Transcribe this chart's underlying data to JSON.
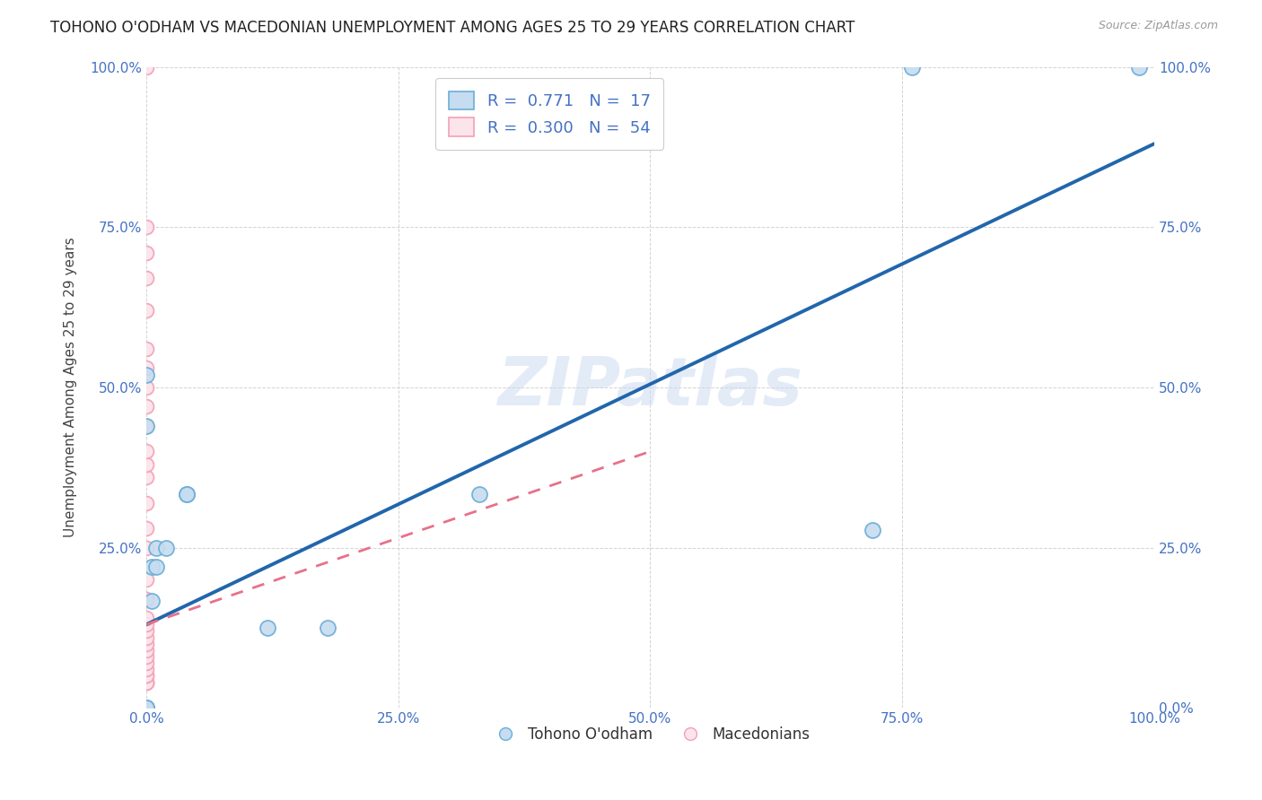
{
  "title": "TOHONO O'ODHAM VS MACEDONIAN UNEMPLOYMENT AMONG AGES 25 TO 29 YEARS CORRELATION CHART",
  "source": "Source: ZipAtlas.com",
  "ylabel": "Unemployment Among Ages 25 to 29 years",
  "xlim": [
    0,
    1.0
  ],
  "ylim": [
    0,
    1.0
  ],
  "xticks": [
    0.0,
    0.25,
    0.5,
    0.75,
    1.0
  ],
  "yticks": [
    0.0,
    0.25,
    0.5,
    0.75,
    1.0
  ],
  "xticklabels": [
    "0.0%",
    "25.0%",
    "50.0%",
    "75.0%",
    "100.0%"
  ],
  "yticklabels": [
    "",
    "25.0%",
    "50.0%",
    "75.0%",
    "100.0%"
  ],
  "right_yticklabels": [
    "0.0%",
    "25.0%",
    "50.0%",
    "75.0%",
    "100.0%"
  ],
  "blue_edge": "#6baed6",
  "blue_fill": "#c6dcf0",
  "pink_edge": "#f4a0b5",
  "pink_fill": "#fce4ec",
  "trend_blue": "#2166ac",
  "trend_pink": "#e8708a",
  "watermark": "ZIPatlas",
  "legend_R_blue": "0.771",
  "legend_N_blue": "17",
  "legend_R_pink": "0.300",
  "legend_N_pink": "54",
  "blue_trend_x": [
    0.0,
    1.0
  ],
  "blue_trend_y": [
    0.13,
    0.88
  ],
  "pink_trend_x": [
    0.0,
    0.5
  ],
  "pink_trend_y": [
    0.13,
    0.4
  ],
  "tohono_points": [
    [
      0.0,
      0.52
    ],
    [
      0.0,
      0.44
    ],
    [
      0.0,
      0.0
    ],
    [
      0.0,
      0.0
    ],
    [
      0.005,
      0.22
    ],
    [
      0.005,
      0.167
    ],
    [
      0.01,
      0.25
    ],
    [
      0.01,
      0.22
    ],
    [
      0.02,
      0.25
    ],
    [
      0.04,
      0.333
    ],
    [
      0.04,
      0.333
    ],
    [
      0.12,
      0.125
    ],
    [
      0.18,
      0.125
    ],
    [
      0.33,
      0.333
    ],
    [
      0.72,
      0.278
    ],
    [
      0.76,
      1.0
    ],
    [
      0.985,
      1.0
    ]
  ],
  "macedonian_points": [
    [
      0.0,
      0.0
    ],
    [
      0.0,
      0.0
    ],
    [
      0.0,
      0.0
    ],
    [
      0.0,
      0.0
    ],
    [
      0.0,
      0.0
    ],
    [
      0.0,
      0.0
    ],
    [
      0.0,
      0.0
    ],
    [
      0.0,
      0.0
    ],
    [
      0.0,
      0.0
    ],
    [
      0.0,
      0.0
    ],
    [
      0.0,
      0.0
    ],
    [
      0.0,
      0.0
    ],
    [
      0.0,
      0.0
    ],
    [
      0.0,
      0.0
    ],
    [
      0.0,
      0.0
    ],
    [
      0.0,
      0.0
    ],
    [
      0.0,
      0.0
    ],
    [
      0.0,
      0.0
    ],
    [
      0.0,
      0.0
    ],
    [
      0.0,
      0.0
    ],
    [
      0.0,
      0.0
    ],
    [
      0.0,
      0.0
    ],
    [
      0.0,
      0.04
    ],
    [
      0.0,
      0.04
    ],
    [
      0.0,
      0.04
    ],
    [
      0.0,
      0.05
    ],
    [
      0.0,
      0.05
    ],
    [
      0.0,
      0.06
    ],
    [
      0.0,
      0.07
    ],
    [
      0.0,
      0.08
    ],
    [
      0.0,
      0.09
    ],
    [
      0.0,
      0.1
    ],
    [
      0.0,
      0.11
    ],
    [
      0.0,
      0.12
    ],
    [
      0.0,
      0.13
    ],
    [
      0.0,
      0.14
    ],
    [
      0.0,
      0.17
    ],
    [
      0.0,
      0.2
    ],
    [
      0.0,
      0.25
    ],
    [
      0.0,
      0.28
    ],
    [
      0.0,
      0.32
    ],
    [
      0.0,
      0.36
    ],
    [
      0.0,
      0.38
    ],
    [
      0.0,
      0.4
    ],
    [
      0.0,
      0.44
    ],
    [
      0.0,
      0.47
    ],
    [
      0.0,
      0.5
    ],
    [
      0.0,
      0.53
    ],
    [
      0.0,
      0.56
    ],
    [
      0.0,
      0.62
    ],
    [
      0.0,
      0.67
    ],
    [
      0.0,
      0.71
    ],
    [
      0.0,
      0.75
    ],
    [
      0.0,
      1.0
    ]
  ]
}
